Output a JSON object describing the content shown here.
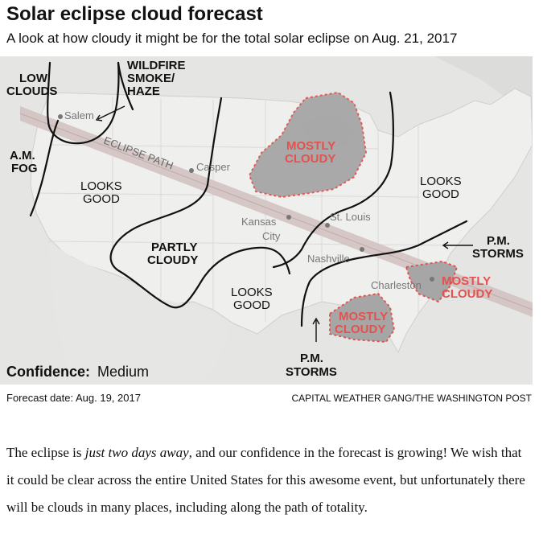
{
  "header": {
    "title": "Solar eclipse cloud forecast",
    "subtitle": "A look at how cloudy it might be for the total solar eclipse on Aug. 21, 2017"
  },
  "map": {
    "path_label": "ECLIPSE PATH",
    "cities": {
      "salem": "Salem",
      "casper": "Casper",
      "kansas_city_1": "Kansas",
      "kansas_city_2": "City",
      "st_louis": "St. Louis",
      "nashville": "Nashville",
      "charleston": "Charleston"
    },
    "regions": {
      "low_clouds_1": "LOW",
      "low_clouds_2": "CLOUDS",
      "wildfire_1": "WILDFIRE",
      "wildfire_2": "SMOKE/",
      "wildfire_3": "HAZE",
      "am_fog_1": "A.M.",
      "am_fog_2": "FOG",
      "looks_good_west_1": "LOOKS",
      "looks_good_west_2": "GOOD",
      "partly_cloudy_1": "PARTLY",
      "partly_cloudy_2": "CLOUDY",
      "looks_good_south_1": "LOOKS",
      "looks_good_south_2": "GOOD",
      "looks_good_east_1": "LOOKS",
      "looks_good_east_2": "GOOD",
      "pm_storms_east_1": "P.M.",
      "pm_storms_east_2": "STORMS",
      "pm_storms_south_1": "P.M.",
      "pm_storms_south_2": "STORMS"
    },
    "cloudy_areas": {
      "great_lakes_1": "MOSTLY",
      "great_lakes_2": "CLOUDY",
      "southeast_1": "MOSTLY",
      "southeast_2": "CLOUDY",
      "gulf_1": "MOSTLY",
      "gulf_2": "CLOUDY"
    },
    "confidence_label": "Confidence:",
    "confidence_value": "Medium"
  },
  "footer": {
    "forecast_date": "Forecast date: Aug. 19, 2017",
    "credit": "CAPITAL WEATHER GANG/THE WASHINGTON POST"
  },
  "article": {
    "p1_a": "The eclipse is ",
    "p1_em": "just two days away",
    "p1_b": ", and our confidence in the forecast is growing! We wish that it could be clear across the entire United States for this awesome event, but unfortunately there will be clouds in many places, including along the path of totality."
  },
  "colors": {
    "land": "#eeeeec",
    "water": "#dedede",
    "path": "#d3c2c2",
    "cloud_fill": "#a6a6a6",
    "cloud_label": "#e2524e"
  }
}
